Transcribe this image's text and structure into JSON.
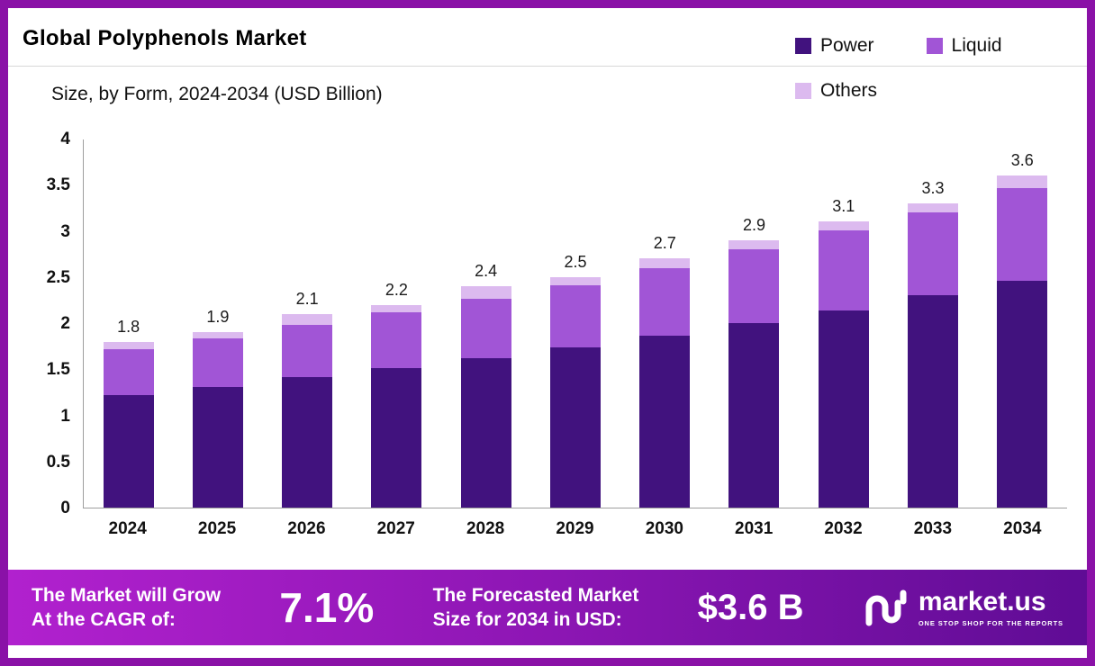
{
  "header": {
    "title": "Global Polyphenols Market",
    "subtitle": "Size, by Form, 2024-2034 (USD Billion)"
  },
  "legend": [
    {
      "label": "Power",
      "color": "#41127e"
    },
    {
      "label": "Liquid",
      "color": "#a155d6"
    },
    {
      "label": "Others",
      "color": "#dcbaef"
    }
  ],
  "chart_data": {
    "type": "bar",
    "stacked": true,
    "title": "Global Polyphenols Market Size, by Form, 2024-2034 (USD Billion)",
    "categories": [
      "2024",
      "2025",
      "2026",
      "2027",
      "2028",
      "2029",
      "2030",
      "2031",
      "2032",
      "2033",
      "2034"
    ],
    "series": [
      {
        "name": "Power",
        "color": "#41127e",
        "values": [
          1.22,
          1.31,
          1.42,
          1.51,
          1.62,
          1.74,
          1.86,
          2.0,
          2.14,
          2.3,
          2.46
        ]
      },
      {
        "name": "Liquid",
        "color": "#a155d6",
        "values": [
          0.5,
          0.52,
          0.56,
          0.61,
          0.64,
          0.67,
          0.74,
          0.8,
          0.86,
          0.9,
          1.0
        ]
      },
      {
        "name": "Others",
        "color": "#dcbaef",
        "values": [
          0.08,
          0.07,
          0.12,
          0.08,
          0.14,
          0.09,
          0.1,
          0.1,
          0.1,
          0.1,
          0.14
        ]
      }
    ],
    "totals": [
      "1.8",
      "1.9",
      "2.1",
      "2.2",
      "2.4",
      "2.5",
      "2.7",
      "2.9",
      "3.1",
      "3.3",
      "3.6"
    ],
    "ylabel": "",
    "xlabel": "",
    "ylim": [
      0,
      4
    ],
    "yticks": [
      "4",
      "3.5",
      "3",
      "2.5",
      "2",
      "1.5",
      "1",
      "0.5",
      "0"
    ],
    "legend_position": "top-right",
    "grid": false
  },
  "footer": {
    "cagr_line1": "The Market will Grow",
    "cagr_line2": "At the CAGR of:",
    "cagr_value": "7.1%",
    "forecast_line1": "The Forecasted Market",
    "forecast_line2": "Size for 2034 in USD:",
    "forecast_value": "$3.6 B",
    "brand_name": "market.us",
    "brand_tagline": "ONE STOP SHOP FOR THE REPORTS"
  }
}
